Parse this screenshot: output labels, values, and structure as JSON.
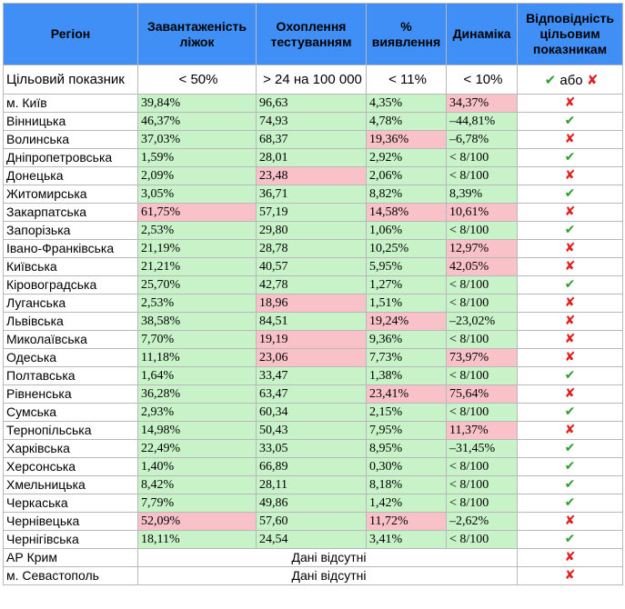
{
  "header": [
    "Регіон",
    "Завантаженість ліжок",
    "Охоплення тестуванням",
    "% виявлення",
    "Динаміка",
    "Відповідність цільовим показникам"
  ],
  "target": {
    "label": "Цільовий показник",
    "values": [
      "< 50%",
      "> 24 на 100 000",
      "< 11%",
      "< 10%"
    ],
    "legend_check": "✔",
    "legend_or": "або",
    "legend_cross": "✘"
  },
  "rows": [
    {
      "region": "м. Київ",
      "beds": "39,84%",
      "beds_s": "ok",
      "tests": "96,63",
      "tests_s": "ok",
      "detect": "4,35%",
      "detect_s": "ok",
      "dyn": "34,37%",
      "dyn_s": "bad",
      "ok": false
    },
    {
      "region": "Вінницька",
      "beds": "46,37%",
      "beds_s": "ok",
      "tests": "74,93",
      "tests_s": "ok",
      "detect": "4,78%",
      "detect_s": "ok",
      "dyn": "–44,81%",
      "dyn_s": "ok",
      "ok": true
    },
    {
      "region": "Волинська",
      "beds": "37,03%",
      "beds_s": "ok",
      "tests": "68,37",
      "tests_s": "ok",
      "detect": "19,36%",
      "detect_s": "bad",
      "dyn": "–6,78%",
      "dyn_s": "ok",
      "ok": false
    },
    {
      "region": "Дніпропетровська",
      "beds": "1,59%",
      "beds_s": "ok",
      "tests": "28,01",
      "tests_s": "ok",
      "detect": "2,92%",
      "detect_s": "ok",
      "dyn": "< 8/100",
      "dyn_s": "ok",
      "ok": true
    },
    {
      "region": "Донецька",
      "beds": "2,09%",
      "beds_s": "ok",
      "tests": "23,48",
      "tests_s": "bad",
      "detect": "2,06%",
      "detect_s": "ok",
      "dyn": "< 8/100",
      "dyn_s": "ok",
      "ok": false
    },
    {
      "region": "Житомирська",
      "beds": "3,05%",
      "beds_s": "ok",
      "tests": "36,71",
      "tests_s": "ok",
      "detect": "8,82%",
      "detect_s": "ok",
      "dyn": "8,39%",
      "dyn_s": "ok",
      "ok": true
    },
    {
      "region": "Закарпатська",
      "beds": "61,75%",
      "beds_s": "bad",
      "tests": "57,19",
      "tests_s": "ok",
      "detect": "14,58%",
      "detect_s": "bad",
      "dyn": "10,61%",
      "dyn_s": "bad",
      "ok": false
    },
    {
      "region": "Запорізька",
      "beds": "2,53%",
      "beds_s": "ok",
      "tests": "29,80",
      "tests_s": "ok",
      "detect": "1,06%",
      "detect_s": "ok",
      "dyn": "< 8/100",
      "dyn_s": "ok",
      "ok": true
    },
    {
      "region": "Івано-Франківська",
      "beds": "21,19%",
      "beds_s": "ok",
      "tests": "28,78",
      "tests_s": "ok",
      "detect": "10,25%",
      "detect_s": "ok",
      "dyn": "12,97%",
      "dyn_s": "bad",
      "ok": false
    },
    {
      "region": "Київська",
      "beds": "21,21%",
      "beds_s": "ok",
      "tests": "40,57",
      "tests_s": "ok",
      "detect": "5,95%",
      "detect_s": "ok",
      "dyn": "42,05%",
      "dyn_s": "bad",
      "ok": false
    },
    {
      "region": "Кіровоградська",
      "beds": "25,70%",
      "beds_s": "ok",
      "tests": "42,78",
      "tests_s": "ok",
      "detect": "1,27%",
      "detect_s": "ok",
      "dyn": "< 8/100",
      "dyn_s": "ok",
      "ok": true
    },
    {
      "region": "Луганська",
      "beds": "2,53%",
      "beds_s": "ok",
      "tests": "18,96",
      "tests_s": "bad",
      "detect": "1,51%",
      "detect_s": "ok",
      "dyn": "< 8/100",
      "dyn_s": "ok",
      "ok": false
    },
    {
      "region": "Львівська",
      "beds": "38,58%",
      "beds_s": "ok",
      "tests": "84,51",
      "tests_s": "ok",
      "detect": "19,24%",
      "detect_s": "bad",
      "dyn": "–23,02%",
      "dyn_s": "ok",
      "ok": false
    },
    {
      "region": "Миколаївська",
      "beds": "7,70%",
      "beds_s": "ok",
      "tests": "19,19",
      "tests_s": "bad",
      "detect": "9,36%",
      "detect_s": "ok",
      "dyn": "< 8/100",
      "dyn_s": "ok",
      "ok": false
    },
    {
      "region": "Одеська",
      "beds": "11,18%",
      "beds_s": "ok",
      "tests": "23,06",
      "tests_s": "bad",
      "detect": "7,73%",
      "detect_s": "ok",
      "dyn": "73,97%",
      "dyn_s": "bad",
      "ok": false
    },
    {
      "region": "Полтавська",
      "beds": "1,64%",
      "beds_s": "ok",
      "tests": "33,47",
      "tests_s": "ok",
      "detect": "1,38%",
      "detect_s": "ok",
      "dyn": "< 8/100",
      "dyn_s": "ok",
      "ok": true
    },
    {
      "region": "Рівненська",
      "beds": "36,28%",
      "beds_s": "ok",
      "tests": "63,47",
      "tests_s": "ok",
      "detect": "23,41%",
      "detect_s": "bad",
      "dyn": "75,64%",
      "dyn_s": "bad",
      "ok": false
    },
    {
      "region": "Сумська",
      "beds": "2,93%",
      "beds_s": "ok",
      "tests": "60,34",
      "tests_s": "ok",
      "detect": "2,15%",
      "detect_s": "ok",
      "dyn": "< 8/100",
      "dyn_s": "ok",
      "ok": true
    },
    {
      "region": "Тернопільська",
      "beds": "14,98%",
      "beds_s": "ok",
      "tests": "50,43",
      "tests_s": "ok",
      "detect": "7,95%",
      "detect_s": "ok",
      "dyn": "11,37%",
      "dyn_s": "bad",
      "ok": false
    },
    {
      "region": "Харківська",
      "beds": "22,49%",
      "beds_s": "ok",
      "tests": "33,05",
      "tests_s": "ok",
      "detect": "8,95%",
      "detect_s": "ok",
      "dyn": "–31,45%",
      "dyn_s": "ok",
      "ok": true
    },
    {
      "region": "Херсонська",
      "beds": "1,40%",
      "beds_s": "ok",
      "tests": "66,89",
      "tests_s": "ok",
      "detect": "0,30%",
      "detect_s": "ok",
      "dyn": "< 8/100",
      "dyn_s": "ok",
      "ok": true
    },
    {
      "region": "Хмельницька",
      "beds": "8,42%",
      "beds_s": "ok",
      "tests": "28,11",
      "tests_s": "ok",
      "detect": "8,18%",
      "detect_s": "ok",
      "dyn": "< 8/100",
      "dyn_s": "ok",
      "ok": true
    },
    {
      "region": "Черкаська",
      "beds": "7,79%",
      "beds_s": "ok",
      "tests": "49,86",
      "tests_s": "ok",
      "detect": "1,42%",
      "detect_s": "ok",
      "dyn": "< 8/100",
      "dyn_s": "ok",
      "ok": true
    },
    {
      "region": "Чернівецька",
      "beds": "52,09%",
      "beds_s": "bad",
      "tests": "57,60",
      "tests_s": "ok",
      "detect": "11,72%",
      "detect_s": "bad",
      "dyn": "–2,62%",
      "dyn_s": "ok",
      "ok": false
    },
    {
      "region": "Чернігівська",
      "beds": "18,11%",
      "beds_s": "ok",
      "tests": "24,54",
      "tests_s": "ok",
      "detect": "3,41%",
      "detect_s": "ok",
      "dyn": "< 8/100",
      "dyn_s": "ok",
      "ok": true
    }
  ],
  "missing_rows": [
    {
      "region": "АР Крим",
      "note": "Дані відсутні",
      "ok": false
    },
    {
      "region": "м. Севастополь",
      "note": "Дані відсутні",
      "ok": false
    }
  ],
  "colors": {
    "header": "#3f8ff7",
    "ok_fill": "#c8f2c8",
    "bad_fill": "#f8c2c8",
    "check": "#2e9f2e",
    "cross": "#e02020"
  }
}
